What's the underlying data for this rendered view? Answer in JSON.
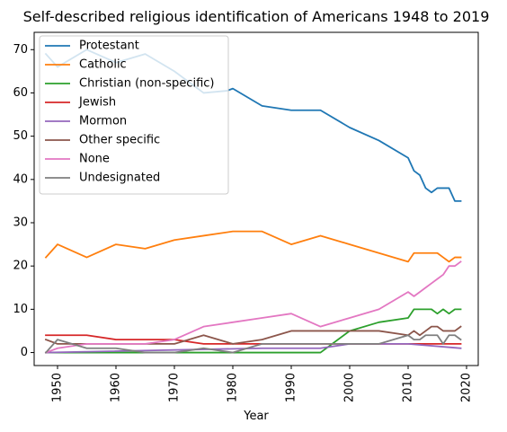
{
  "chart_data": {
    "type": "line",
    "title": "Self-described religious identification of Americans 1948 to 2019",
    "xlabel": "Year",
    "ylabel": "",
    "xlim": [
      1946,
      2022
    ],
    "ylim": [
      -3,
      74
    ],
    "xticks": [
      1950,
      1960,
      1970,
      1980,
      1990,
      2000,
      2010,
      2020
    ],
    "yticks": [
      0,
      10,
      20,
      30,
      40,
      50,
      60,
      70
    ],
    "grid": false,
    "legend_position": "top-left",
    "series": [
      {
        "name": "Protestant",
        "color": "#1f77b4",
        "x": [
          1948,
          1950,
          1955,
          1960,
          1965,
          1970,
          1975,
          1979,
          1980,
          1985,
          1990,
          1995,
          2000,
          2005,
          2010,
          2011,
          2012,
          2013,
          2014,
          2015,
          2016,
          2017,
          2018,
          2019
        ],
        "y": [
          69,
          66,
          70,
          67,
          69,
          65,
          60,
          60.5,
          61,
          57,
          56,
          56,
          52,
          49,
          45,
          42,
          41,
          38,
          37,
          38,
          38,
          38,
          35,
          35
        ]
      },
      {
        "name": "Catholic",
        "color": "#ff7f0e",
        "x": [
          1948,
          1950,
          1955,
          1960,
          1965,
          1970,
          1975,
          1980,
          1985,
          1990,
          1995,
          2000,
          2005,
          2010,
          2011,
          2012,
          2013,
          2014,
          2015,
          2016,
          2017,
          2018,
          2019
        ],
        "y": [
          22,
          25,
          22,
          25,
          24,
          26,
          27,
          28,
          28,
          25,
          27,
          25,
          23,
          21,
          23,
          23,
          23,
          23,
          23,
          22,
          21,
          22,
          22
        ]
      },
      {
        "name": "Christian (non-specific)",
        "color": "#2ca02c",
        "x": [
          1948,
          1995,
          2000,
          2005,
          2010,
          2011,
          2012,
          2013,
          2014,
          2015,
          2016,
          2017,
          2018,
          2019
        ],
        "y": [
          0,
          0,
          5,
          7,
          8,
          10,
          10,
          10,
          10,
          9,
          10,
          9,
          10,
          10
        ]
      },
      {
        "name": "Jewish",
        "color": "#d62728",
        "x": [
          1948,
          1955,
          1960,
          1970,
          1975,
          1980,
          1990,
          2000,
          2010,
          2019
        ],
        "y": [
          4,
          4,
          3,
          3,
          2,
          2,
          2,
          2,
          2,
          2
        ]
      },
      {
        "name": "Mormon",
        "color": "#9467bd",
        "x": [
          1948,
          1985,
          1990,
          1995,
          2000,
          2010,
          2019
        ],
        "y": [
          0,
          1,
          1,
          1,
          2,
          2,
          1
        ]
      },
      {
        "name": "Other specific",
        "color": "#8c564b",
        "x": [
          1948,
          1950,
          1955,
          1960,
          1965,
          1970,
          1975,
          1980,
          1985,
          1990,
          1995,
          2000,
          2005,
          2010,
          2011,
          2012,
          2013,
          2014,
          2015,
          2016,
          2017,
          2018,
          2019
        ],
        "y": [
          3,
          2,
          2,
          2,
          2,
          2,
          4,
          2,
          3,
          5,
          5,
          5,
          5,
          4,
          5,
          4,
          5,
          6,
          6,
          5,
          5,
          5,
          6
        ]
      },
      {
        "name": "None",
        "color": "#e377c2",
        "x": [
          1948,
          1950,
          1955,
          1960,
          1965,
          1970,
          1975,
          1980,
          1985,
          1990,
          1995,
          2000,
          2005,
          2010,
          2011,
          2012,
          2013,
          2014,
          2015,
          2016,
          2017,
          2018,
          2019
        ],
        "y": [
          0,
          1,
          2,
          2,
          2,
          3,
          6,
          7,
          8,
          9,
          6,
          8,
          10,
          14,
          13,
          14,
          15,
          16,
          17,
          18,
          20,
          20,
          21
        ]
      },
      {
        "name": "Undesignated",
        "color": "#7f7f7f",
        "x": [
          1948,
          1950,
          1955,
          1960,
          1965,
          1970,
          1975,
          1980,
          1985,
          1990,
          1995,
          2000,
          2005,
          2010,
          2011,
          2012,
          2013,
          2014,
          2015,
          2016,
          2017,
          2018,
          2019
        ],
        "y": [
          0,
          3,
          1,
          1,
          0,
          0,
          1,
          0,
          2,
          2,
          2,
          2,
          2,
          4,
          3,
          3,
          4,
          4,
          4,
          2,
          4,
          4,
          3
        ]
      }
    ]
  }
}
